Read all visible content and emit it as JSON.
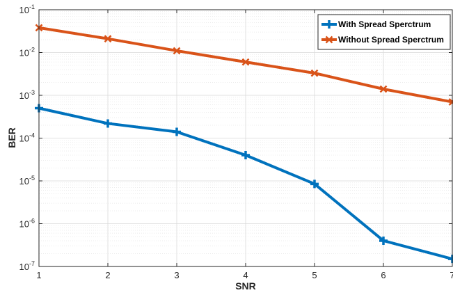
{
  "chart_data": {
    "type": "line",
    "xlabel": "SNR",
    "ylabel": "BER",
    "y_scale": "log",
    "xlim": [
      1,
      7
    ],
    "ylim": [
      1e-07,
      0.1
    ],
    "x_ticks": [
      "1",
      "2",
      "3",
      "4",
      "5",
      "6",
      "7"
    ],
    "y_ticks": [
      {
        "base": "10",
        "exp": "-7",
        "value": 1e-07
      },
      {
        "base": "10",
        "exp": "-6",
        "value": 1e-06
      },
      {
        "base": "10",
        "exp": "-5",
        "value": 1e-05
      },
      {
        "base": "10",
        "exp": "-4",
        "value": 0.0001
      },
      {
        "base": "10",
        "exp": "-3",
        "value": 0.001
      },
      {
        "base": "10",
        "exp": "-2",
        "value": 0.01
      },
      {
        "base": "10",
        "exp": "-1",
        "value": 0.1
      }
    ],
    "grid": true,
    "minor_grid": true,
    "legend_position": "top-right",
    "x": [
      1,
      2,
      3,
      4,
      5,
      6,
      7
    ],
    "series": [
      {
        "name": "With Spread Sperctrum",
        "color": "#0072BD",
        "marker": "plus",
        "values": [
          0.0005,
          0.00022,
          0.00014,
          4e-05,
          8.5e-06,
          4e-07,
          1.5e-07
        ]
      },
      {
        "name": "Without Spread Sperctrum",
        "color": "#D95319",
        "marker": "x",
        "values": [
          0.038,
          0.021,
          0.011,
          0.006,
          0.0033,
          0.0014,
          0.0007
        ]
      }
    ]
  }
}
